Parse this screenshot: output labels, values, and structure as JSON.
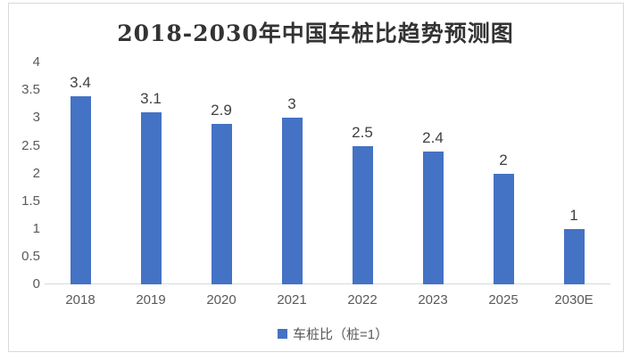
{
  "title": "2018-2030年中国车桩比趋势预测图",
  "legend": {
    "label": "车桩比（桩=1）"
  },
  "colors": {
    "background": "#FFFFFF",
    "bar": "#4472C4",
    "axis_line": "#D9D9D9",
    "frame_border": "#D9D9D9",
    "tick_text": "#595959",
    "label_text": "#404040",
    "title_text": "#333333"
  },
  "chart_data": {
    "type": "bar",
    "title": "2018-2030年中国车桩比趋势预测图",
    "categories": [
      "2018",
      "2019",
      "2020",
      "2021",
      "2022",
      "2023",
      "2025",
      "2030E"
    ],
    "values": [
      3.4,
      3.1,
      2.9,
      3,
      2.5,
      2.4,
      2,
      1
    ],
    "data_labels": [
      "3.4",
      "3.1",
      "2.9",
      "3",
      "2.5",
      "2.4",
      "2",
      "1"
    ],
    "xlabel": "",
    "ylabel": "",
    "ylim": [
      0,
      4
    ],
    "ytick_step": 0.5,
    "ytick_labels": [
      "4",
      "3.5",
      "3",
      "2.5",
      "2",
      "1.5",
      "1",
      "0.5",
      "0"
    ],
    "grid": false,
    "legend_entries": [
      "车桩比（桩=1）"
    ],
    "legend_position": "bottom"
  }
}
